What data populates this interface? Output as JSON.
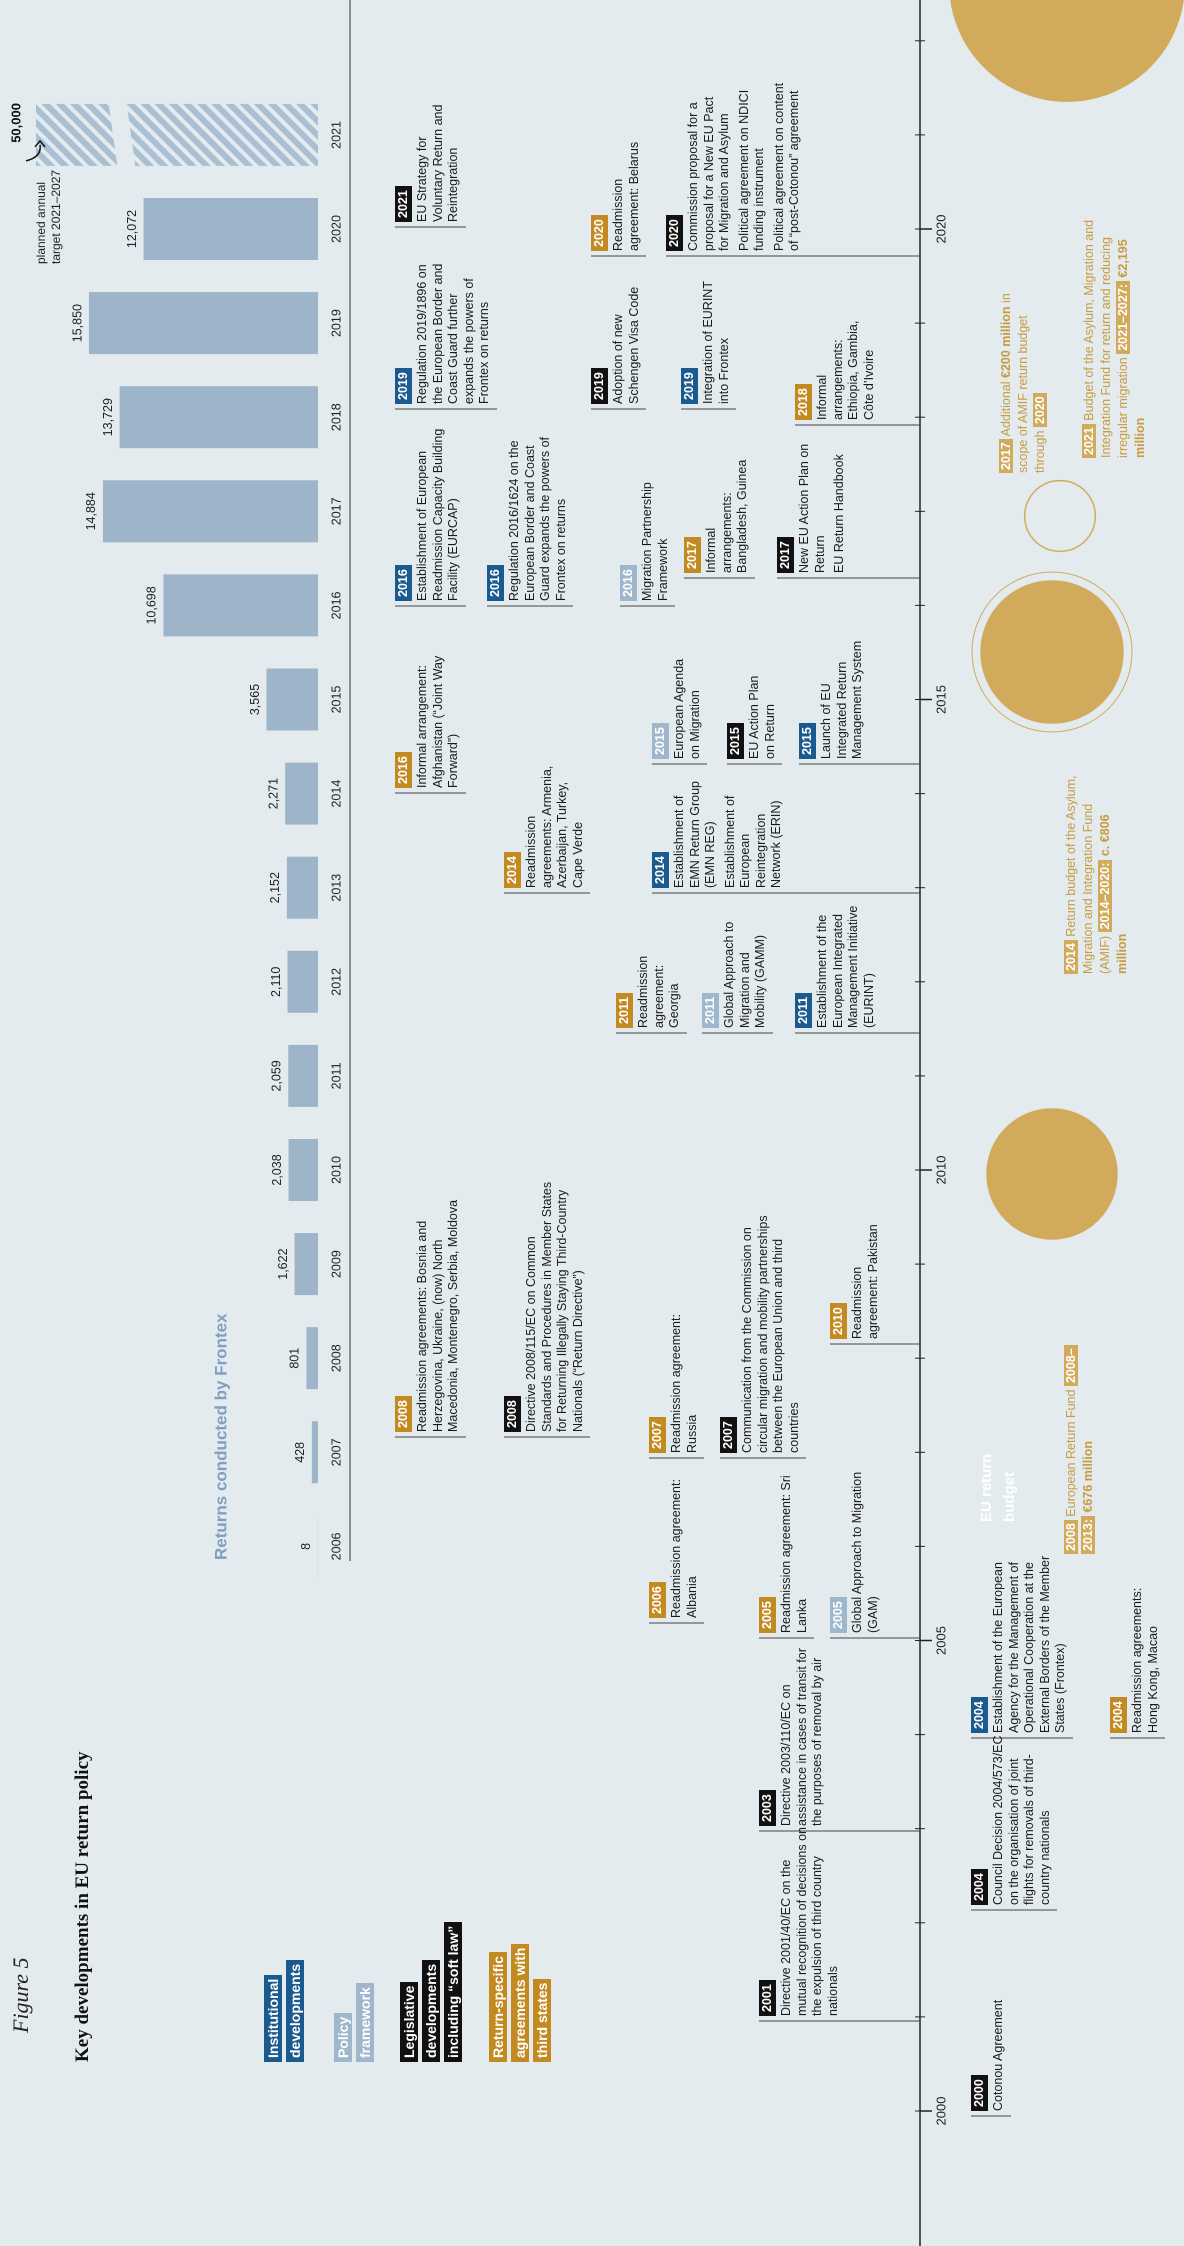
{
  "figure": "Figure 5",
  "title": "Key developments in EU return policy",
  "legend": [
    {
      "label": "Institutional developments",
      "color": "#1b5a8e"
    },
    {
      "label": "Policy framework",
      "color": "#9fb7cc"
    },
    {
      "label": "Legislative developments including “soft law”",
      "color": "#111111"
    },
    {
      "label": "Return-specific agreements with third states",
      "color": "#c48a22"
    }
  ],
  "chart_data": {
    "type": "bar",
    "title": "Returns conducted by Frontex",
    "categories": [
      "2006",
      "2007",
      "2008",
      "2009",
      "2010",
      "2011",
      "2012",
      "2013",
      "2014",
      "2015",
      "2016",
      "2017",
      "2018",
      "2019",
      "2020",
      "2021"
    ],
    "values": [
      8,
      428,
      801,
      1622,
      2038,
      2059,
      2110,
      2152,
      2271,
      3565,
      10698,
      14884,
      13729,
      15850,
      12072,
      50000
    ],
    "value_labels": [
      "8",
      "428",
      "801",
      "1,622",
      "2,038",
      "2,059",
      "2,110",
      "2,152",
      "2,271",
      "3,565",
      "10,698",
      "14,884",
      "13,729",
      "15,850",
      "12,072",
      "50,000"
    ],
    "color": "#9db4c9",
    "ylim": [
      0,
      20000
    ],
    "annotation": "planned annual target 2021–2027"
  },
  "timeline": {
    "years": [
      "2000",
      "2005",
      "2010",
      "2015",
      "2020"
    ]
  },
  "entries": [
    {
      "year": "2001",
      "color": "#111111",
      "items": [
        "Directive 2001/40/EC on the mutual recognition of decisions on the expulsion of third country nationals"
      ]
    },
    {
      "year": "2003",
      "color": "#111111",
      "items": [
        "Directive 2003/110/EC on assistance in cases of transit for the purposes of removal by air"
      ]
    },
    {
      "year": "2005",
      "color": "#c48a22",
      "items": [
        "Readmission agreement: Sri Lanka"
      ]
    },
    {
      "year": "2005",
      "color": "#9fb7cc",
      "items": [
        "Global Approach to Migration (GAM)"
      ]
    },
    {
      "year": "2006",
      "color": "#c48a22",
      "items": [
        "Readmission agreement: Albania"
      ]
    },
    {
      "year": "2007",
      "color": "#c48a22",
      "items": [
        "Readmission agreement: Russia"
      ]
    },
    {
      "year": "2007",
      "color": "#111111",
      "items": [
        "Communication from the Commission on circular migration and mobility partnerships between the European Union and third countries"
      ]
    },
    {
      "year": "2008",
      "color": "#c48a22",
      "items": [
        "Readmission agreements: Bosnia and Herzegovina, Ukraine, (now) North Macedonia, Montenegro, Serbia, Moldova"
      ]
    },
    {
      "year": "2008",
      "color": "#111111",
      "items": [
        "Directive 2008/115/EC on Common Standards and Procedures in Member States for Returning Illegally Staying Third-Country Nationals (“Return Directive”)"
      ]
    },
    {
      "year": "2010",
      "color": "#c48a22",
      "items": [
        "Readmission agreement: Pakistan"
      ]
    },
    {
      "year": "2011",
      "color": "#c48a22",
      "items": [
        "Readmission agreement: Georgia"
      ]
    },
    {
      "year": "2011",
      "color": "#9fb7cc",
      "items": [
        "Global Approach to Migration and Mobility (GAMM)"
      ]
    },
    {
      "year": "2011",
      "color": "#1b5a8e",
      "items": [
        "Establishment of the European Integrated Management Initiative (EURINT)"
      ]
    },
    {
      "year": "2014",
      "color": "#c48a22",
      "items": [
        "Readmission agreements: Armenia, Azerbaijan, Turkey, Cape Verde"
      ]
    },
    {
      "year": "2014",
      "color": "#1b5a8e",
      "items": [
        "Establishment of EMN Return Group (EMN REG)",
        "Establishment of European Reintegration Network (ERIN)"
      ]
    },
    {
      "year": "2016",
      "color": "#c48a22",
      "items": [
        "Informal arrangement: Afghanistan (“Joint Way Forward”)"
      ]
    },
    {
      "year": "2015",
      "color": "#9fb7cc",
      "items": [
        "European Agenda on Migration"
      ]
    },
    {
      "year": "2015",
      "color": "#111111",
      "items": [
        "EU Action Plan on Return"
      ]
    },
    {
      "year": "2015",
      "color": "#1b5a8e",
      "items": [
        "Launch of EU Integrated Return Management System"
      ]
    },
    {
      "year": "2016",
      "color": "#1b5a8e",
      "items": [
        "Establishment of European Readmission Capacity Building Facility (EURCAP)"
      ]
    },
    {
      "year": "2016",
      "color": "#1b5a8e",
      "items": [
        "Regulation 2016/1624 on the European Border and Coast Guard expands the powers of Frontex on returns"
      ]
    },
    {
      "year": "2016",
      "color": "#9fb7cc",
      "items": [
        "Migration Partnership Framework"
      ]
    },
    {
      "year": "2017",
      "color": "#c48a22",
      "items": [
        "Informal arrangements: Bangladesh, Guinea"
      ]
    },
    {
      "year": "2017",
      "color": "#111111",
      "items": [
        "New EU Action Plan on Return",
        "EU Return Handbook"
      ]
    },
    {
      "year": "2019",
      "color": "#1b5a8e",
      "items": [
        "Regulation 2019/1896 on the European Border and Coast Guard further expands the powers of Frontex on returns"
      ]
    },
    {
      "year": "2019",
      "color": "#111111",
      "items": [
        "Adoption of new Schengen Visa Code"
      ]
    },
    {
      "year": "2019",
      "color": "#1b5a8e",
      "items": [
        "Integration of EURINT into Frontex"
      ]
    },
    {
      "year": "2018",
      "color": "#c48a22",
      "items": [
        "Informal arrangements: Ethiopia, Gambia, Côte d’Ivoire"
      ]
    },
    {
      "year": "2021",
      "color": "#111111",
      "items": [
        "EU Strategy for Voluntary Return and Reintegration"
      ]
    },
    {
      "year": "2020",
      "color": "#c48a22",
      "items": [
        "Readmission agreement: Belarus"
      ]
    },
    {
      "year": "2020",
      "color": "#111111",
      "items": [
        "Commission proposal for a proposal for a New EU Pact for Migration and Asylum",
        "Political agreement on NDICI funding instrument",
        "Political agreement on content of “post-Cotonou” agreement"
      ]
    },
    {
      "year": "2000",
      "color": "#111111",
      "items": [
        "Cotonou Agreement"
      ]
    },
    {
      "year": "2004",
      "color": "#111111",
      "items": [
        "Council Decision 2004/573/EC on the organisation of joint flights for removals of third-country nationals"
      ]
    },
    {
      "year": "2004",
      "color": "#1b5a8e",
      "items": [
        "Establishment of the European Agency for the Management of Operational Cooperation at the External Borders of the Member States (Frontex)"
      ]
    },
    {
      "year": "2004",
      "color": "#c48a22",
      "items": [
        "Readmission agreements: Hong Kong, Macao"
      ]
    }
  ],
  "budget": {
    "title": "EU return budget",
    "color": "#d2aa5c",
    "items": [
      {
        "year": "2008",
        "text": "European Return Fund",
        "period": "2008–2013:",
        "amount": "€676 million",
        "value": 676
      },
      {
        "year": "2014",
        "text": "Return budget of the Asylum, Migration and Integration Fund (AMIF)",
        "period": "2014–2020:",
        "amount": "c. €806 million",
        "value": 806
      },
      {
        "year": "2017",
        "text": "Additional",
        "amount": "€200 million",
        "text_after": "in scope of AMIF return budget through",
        "period": "2020",
        "value": 200
      },
      {
        "year": "2021",
        "text": "Budget of the Asylum, Migration and Integration Fund for return and reducing irregular migration",
        "period": "2021–2027:",
        "amount": "€2,195 million",
        "value": 2195
      }
    ]
  }
}
